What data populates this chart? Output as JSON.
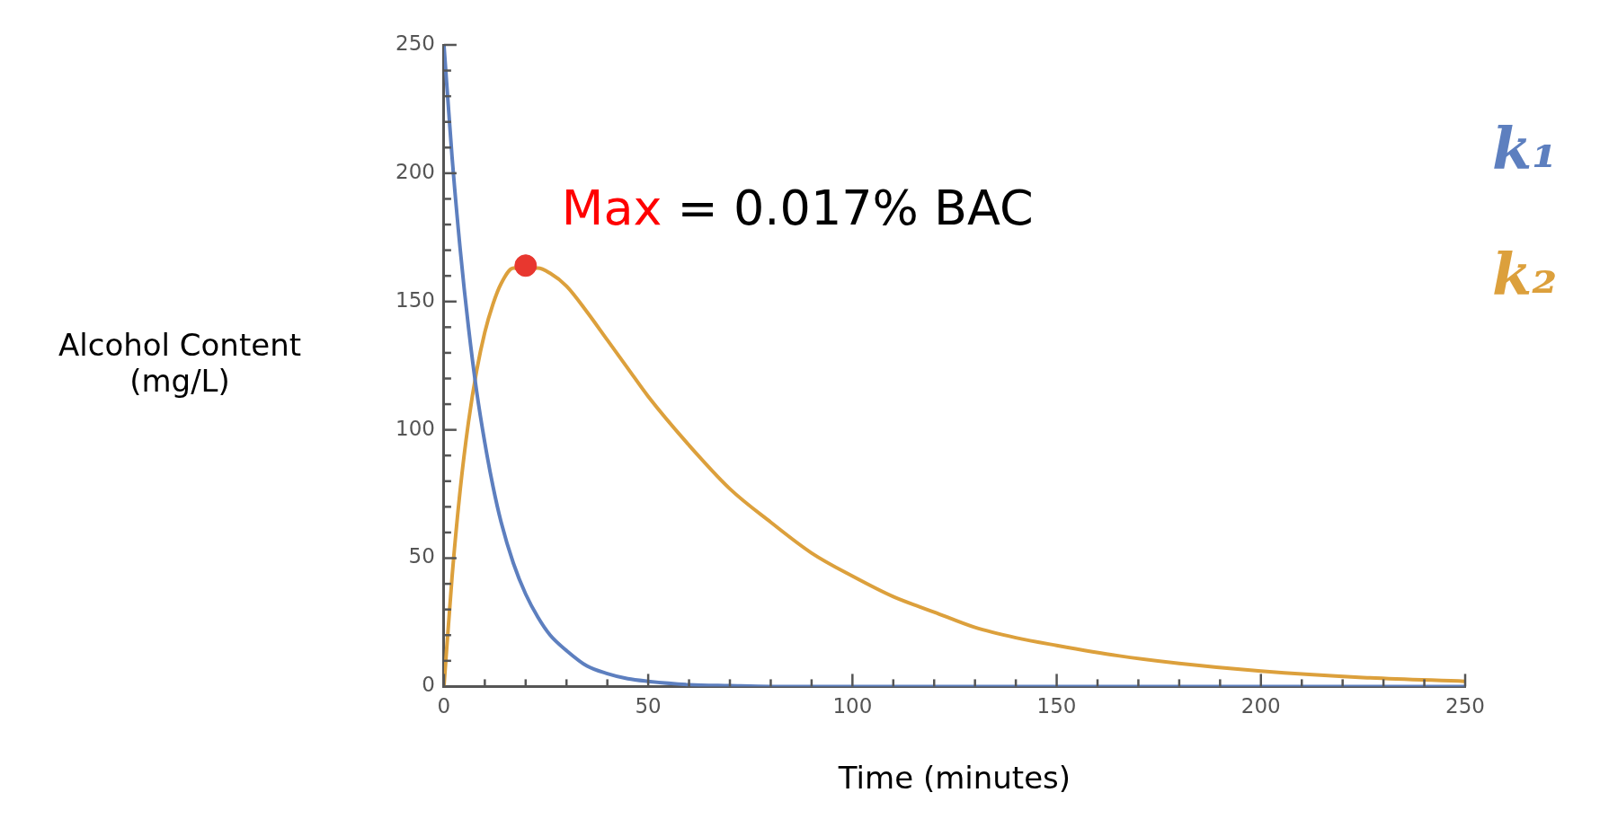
{
  "chart_data": {
    "type": "line",
    "xlabel": "Time (minutes)",
    "ylabel": "Alcohol Content (mg/L)",
    "xlim": [
      0,
      250
    ],
    "ylim": [
      0,
      250
    ],
    "xticks": [
      0,
      {
        "value": 10,
        "label": null
      },
      {
        "value": 20,
        "label": null
      },
      {
        "value": 30,
        "label": null
      },
      {
        "value": 40,
        "label": null
      },
      50,
      {
        "value": 60,
        "label": null
      },
      {
        "value": 70,
        "label": null
      },
      {
        "value": 80,
        "label": null
      },
      {
        "value": 90,
        "label": null
      },
      100,
      {
        "value": 110,
        "label": null
      },
      {
        "value": 120,
        "label": null
      },
      {
        "value": 130,
        "label": null
      },
      {
        "value": 140,
        "label": null
      },
      150,
      {
        "value": 160,
        "label": null
      },
      {
        "value": 170,
        "label": null
      },
      {
        "value": 180,
        "label": null
      },
      {
        "value": 190,
        "label": null
      },
      200,
      {
        "value": 210,
        "label": null
      },
      {
        "value": 220,
        "label": null
      },
      {
        "value": 230,
        "label": null
      },
      {
        "value": 240,
        "label": null
      },
      250
    ],
    "yticks": [
      0,
      {
        "value": 10,
        "label": null
      },
      {
        "value": 20,
        "label": null
      },
      {
        "value": 30,
        "label": null
      },
      {
        "value": 40,
        "label": null
      },
      50,
      {
        "value": 60,
        "label": null
      },
      {
        "value": 70,
        "label": null
      },
      {
        "value": 80,
        "label": null
      },
      {
        "value": 90,
        "label": null
      },
      100,
      {
        "value": 110,
        "label": null
      },
      {
        "value": 120,
        "label": null
      },
      {
        "value": 130,
        "label": null
      },
      {
        "value": 140,
        "label": null
      },
      150,
      {
        "value": 160,
        "label": null
      },
      {
        "value": 170,
        "label": null
      },
      {
        "value": 180,
        "label": null
      },
      {
        "value": 190,
        "label": null
      },
      200,
      {
        "value": 210,
        "label": null
      },
      {
        "value": 220,
        "label": null
      },
      {
        "value": 230,
        "label": null
      },
      {
        "value": 240,
        "label": null
      },
      250
    ],
    "grid": false,
    "marker": "none",
    "line_style": "solid",
    "series": [
      {
        "name": "k₁",
        "color": "#5d7fbf",
        "x": [
          0,
          2,
          4,
          6,
          8,
          10,
          12,
          14,
          17,
          20,
          23,
          26,
          30,
          35,
          40,
          45,
          50,
          60,
          70,
          80,
          100,
          150,
          200,
          250
        ],
        "values": [
          250,
          206,
          170,
          140,
          115,
          95,
          78,
          64,
          48,
          36,
          27,
          20,
          14,
          8,
          5,
          3,
          2,
          0.7,
          0.3,
          0,
          0,
          0,
          0,
          0
        ]
      },
      {
        "name": "k₂",
        "color": "#dca03c",
        "x": [
          0,
          2,
          4,
          6,
          8,
          10,
          12,
          14,
          17,
          23,
          26,
          30,
          35,
          40,
          45,
          50,
          60,
          70,
          80,
          90,
          100,
          110,
          120,
          130,
          140,
          150,
          165,
          180,
          200,
          225,
          250
        ],
        "values": [
          0,
          43,
          77,
          103,
          123,
          138,
          149,
          157,
          163,
          163,
          161,
          156,
          146,
          135,
          124,
          113,
          94,
          77,
          64,
          52,
          43,
          35,
          29,
          23,
          19,
          16,
          12,
          9,
          6,
          3.5,
          2
        ]
      },
      {
        "type": "scatter",
        "color": "#e8372f",
        "marker": "circle",
        "x": [
          20
        ],
        "values": [
          164
        ]
      }
    ],
    "annotations": [
      {
        "text": "Max = 0.017% BAC",
        "x": 20,
        "y": 164
      }
    ]
  }
}
